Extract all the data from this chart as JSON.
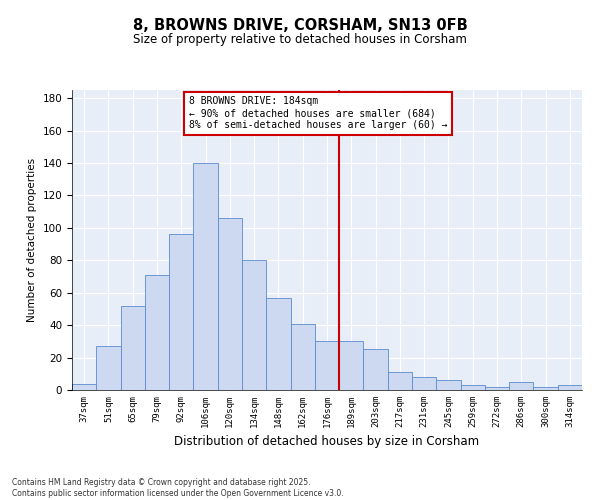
{
  "title": "8, BROWNS DRIVE, CORSHAM, SN13 0FB",
  "subtitle": "Size of property relative to detached houses in Corsham",
  "xlabel": "Distribution of detached houses by size in Corsham",
  "ylabel": "Number of detached properties",
  "footer_line1": "Contains HM Land Registry data © Crown copyright and database right 2025.",
  "footer_line2": "Contains public sector information licensed under the Open Government Licence v3.0.",
  "categories": [
    "37sqm",
    "51sqm",
    "65sqm",
    "79sqm",
    "92sqm",
    "106sqm",
    "120sqm",
    "134sqm",
    "148sqm",
    "162sqm",
    "176sqm",
    "189sqm",
    "203sqm",
    "217sqm",
    "231sqm",
    "245sqm",
    "259sqm",
    "272sqm",
    "286sqm",
    "300sqm",
    "314sqm"
  ],
  "values": [
    4,
    27,
    52,
    71,
    96,
    140,
    106,
    80,
    57,
    41,
    30,
    30,
    25,
    11,
    8,
    6,
    3,
    2,
    5,
    2,
    3
  ],
  "bar_color": "#ccd9f0",
  "bar_edge_color": "#5b8bd0",
  "annotation_text": "8 BROWNS DRIVE: 184sqm\n← 90% of detached houses are smaller (684)\n8% of semi-detached houses are larger (60) →",
  "vline_x_index": 11,
  "vline_color": "#cc0000",
  "annotation_box_color": "#cc0000",
  "bg_color": "#e8eef8",
  "ylim": [
    0,
    185
  ],
  "yticks": [
    0,
    20,
    40,
    60,
    80,
    100,
    120,
    140,
    160,
    180
  ]
}
